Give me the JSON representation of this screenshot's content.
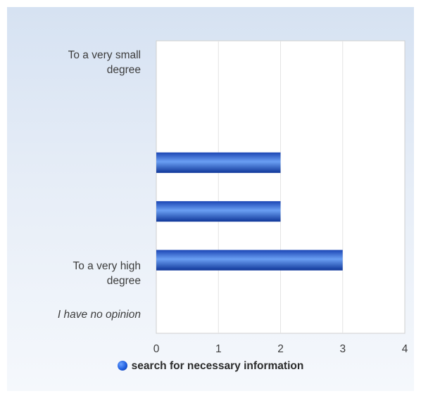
{
  "chart_data": {
    "type": "bar",
    "orientation": "horizontal",
    "categories": [
      "To a very small degree",
      "",
      "",
      "",
      "To a very high degree",
      "I have no opinion"
    ],
    "series": [
      {
        "name": "search for necessary information",
        "values": [
          0,
          0,
          2,
          2,
          3,
          0
        ]
      }
    ],
    "xlim": [
      0,
      4
    ],
    "xticks": [
      "0",
      "1",
      "2",
      "3",
      "4"
    ],
    "title": "",
    "xlabel": "",
    "ylabel": "",
    "grid": true,
    "legend": "bottom",
    "colors": {
      "bar_dark": "#123fa8",
      "bar_light": "#5f97f0",
      "grid": "#e3e3e3",
      "plot_background": "#ffffff"
    }
  },
  "labels": {
    "cat_0_line1": "To a very small",
    "cat_0_line2": "degree",
    "cat_4_line1": "To a very high",
    "cat_4_line2": "degree",
    "cat_5": "I have no opinion"
  },
  "legend": {
    "label": "search for necessary information",
    "icon": "blue-sphere-icon"
  }
}
